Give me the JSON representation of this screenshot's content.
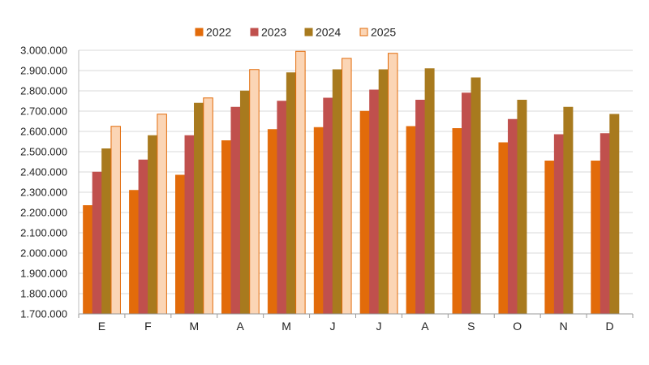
{
  "chart_data": {
    "type": "bar",
    "title": "",
    "xlabel": "",
    "ylabel": "",
    "ylim": [
      1700000,
      3000000
    ],
    "ytick_step": 100000,
    "y_tick_labels": [
      "1.700.000",
      "1.800.000",
      "1.900.000",
      "2.000.000",
      "2.100.000",
      "2.200.000",
      "2.300.000",
      "2.400.000",
      "2.500.000",
      "2.600.000",
      "2.700.000",
      "2.800.000",
      "2.900.000",
      "3.000.000"
    ],
    "grid": true,
    "legend_position": "top-center",
    "categories": [
      "E",
      "F",
      "M",
      "A",
      "M",
      "J",
      "J",
      "A",
      "S",
      "O",
      "N",
      "D"
    ],
    "series": [
      {
        "name": "2022",
        "color": "#E26B0A",
        "stroke": "#E26B0A",
        "values": [
          2235000,
          2310000,
          2385000,
          2555000,
          2610000,
          2620000,
          2700000,
          2625000,
          2615000,
          2545000,
          2455000,
          2455000
        ]
      },
      {
        "name": "2023",
        "color": "#C0504D",
        "stroke": "#C0504D",
        "values": [
          2400000,
          2460000,
          2580000,
          2720000,
          2750000,
          2765000,
          2805000,
          2755000,
          2790000,
          2660000,
          2585000,
          2590000
        ]
      },
      {
        "name": "2024",
        "color": "#A87A1E",
        "stroke": "#A87A1E",
        "values": [
          2515000,
          2580000,
          2740000,
          2800000,
          2890000,
          2905000,
          2905000,
          2910000,
          2865000,
          2755000,
          2720000,
          2685000
        ]
      },
      {
        "name": "2025",
        "color": "#FBD5B5",
        "stroke": "#E26B0A",
        "values": [
          2625000,
          2685000,
          2765000,
          2905000,
          2995000,
          2960000,
          2985000,
          null,
          null,
          null,
          null,
          null
        ]
      }
    ]
  }
}
